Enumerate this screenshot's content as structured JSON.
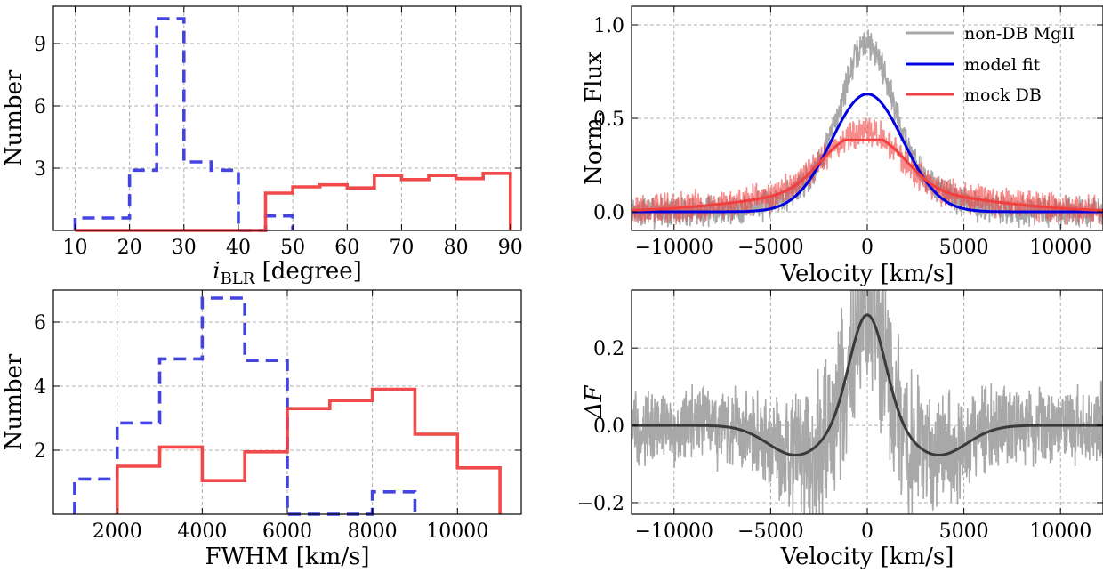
{
  "chart_data": [
    {
      "type": "histogram",
      "id": "incl",
      "xlabel": "i",
      "xlabel_sub": "BLR",
      "xlabel_rest": " [degree]",
      "ylabel": "Number",
      "xlim": [
        6,
        92
      ],
      "ylim": [
        0,
        10.8
      ],
      "xticks": [
        10,
        20,
        30,
        40,
        50,
        60,
        70,
        80,
        90
      ],
      "yticks": [
        3,
        6,
        9
      ],
      "grid": true,
      "series": [
        {
          "color": "#3a3ae0",
          "style": "dashed",
          "edges": [
            10,
            20,
            25,
            30,
            35,
            40,
            45,
            50
          ],
          "values": [
            0.6,
            2.9,
            10.2,
            3.3,
            2.9,
            0,
            0.7
          ]
        },
        {
          "color": "#f04040",
          "style": "solid",
          "edges": [
            10,
            45,
            50,
            55,
            60,
            65,
            70,
            75,
            80,
            85,
            90
          ],
          "values": [
            0,
            1.8,
            2.1,
            2.2,
            2.05,
            2.65,
            2.45,
            2.65,
            2.5,
            2.75
          ]
        }
      ]
    },
    {
      "type": "histogram",
      "id": "fwhm",
      "xlabel": "FWHM [km/s]",
      "ylabel": "Number",
      "xlim": [
        500,
        11500
      ],
      "ylim": [
        0,
        7.0
      ],
      "xticks": [
        2000,
        4000,
        6000,
        8000,
        10000
      ],
      "yticks": [
        2,
        4,
        6
      ],
      "grid": true,
      "series": [
        {
          "color": "#3a3ae0",
          "style": "dashed",
          "edges": [
            1000,
            2000,
            3000,
            4000,
            5000,
            6000,
            7000,
            8000,
            9000
          ],
          "values": [
            1.1,
            2.85,
            4.85,
            6.75,
            4.8,
            0,
            0,
            0.7
          ]
        },
        {
          "color": "#f04040",
          "style": "solid",
          "edges": [
            2000,
            3000,
            4000,
            5000,
            6000,
            7000,
            8000,
            9000,
            10000,
            11000
          ],
          "values": [
            1.5,
            2.1,
            1.05,
            1.95,
            3.3,
            3.55,
            3.9,
            2.5,
            1.45
          ]
        }
      ]
    },
    {
      "type": "line",
      "id": "spec",
      "xlabel": "Velocity [km/s]",
      "ylabel": "Norm. Flux",
      "xlim": [
        -12200,
        12200
      ],
      "ylim": [
        -0.1,
        1.1
      ],
      "xticks": [
        -10000,
        -5000,
        0,
        5000,
        10000
      ],
      "xtick_labels": [
        "−10000",
        "−5000",
        "0",
        "5000",
        "10000"
      ],
      "yticks": [
        0.0,
        0.5,
        1.0
      ],
      "ytick_labels": [
        "0.0",
        "0.5",
        "1.0"
      ],
      "grid": true,
      "legend": "top-right",
      "series": [
        {
          "name": "non-DB MgII",
          "color": "#a8a8a8",
          "kind": "noisy-gaussian",
          "amp": 0.9,
          "sigma": 1200,
          "noise": 0.05
        },
        {
          "name": "model fit",
          "color": "#0000e0",
          "kind": "gaussian-fit",
          "amp": 0.63,
          "sigma": 1850
        },
        {
          "name": "mock DB",
          "color": "#f04040",
          "kind": "double-peak",
          "peaks": [
            -1300,
            900
          ],
          "amp": 0.38,
          "sigma": 2400,
          "noise": 0.06
        }
      ]
    },
    {
      "type": "line",
      "id": "resid",
      "xlabel": "Velocity [km/s]",
      "ylabel": "ΔF",
      "xlim": [
        -12200,
        12200
      ],
      "ylim": [
        -0.23,
        0.35
      ],
      "xticks": [
        -10000,
        -5000,
        0,
        5000,
        10000
      ],
      "xtick_labels": [
        "−10000",
        "−5000",
        "0",
        "5000",
        "10000"
      ],
      "yticks": [
        -0.2,
        0.0,
        0.2
      ],
      "ytick_labels": [
        "−0.2",
        "0.0",
        "0.2"
      ],
      "grid": true,
      "series": [
        {
          "name": "",
          "color": "#a8a8a8",
          "kind": "noisy-residual",
          "noise": 0.065
        },
        {
          "name": "",
          "color": "#3a3a3a",
          "kind": "residual-model",
          "peak": 0.275,
          "trough": -0.082,
          "trough_at": 3600
        }
      ]
    }
  ]
}
